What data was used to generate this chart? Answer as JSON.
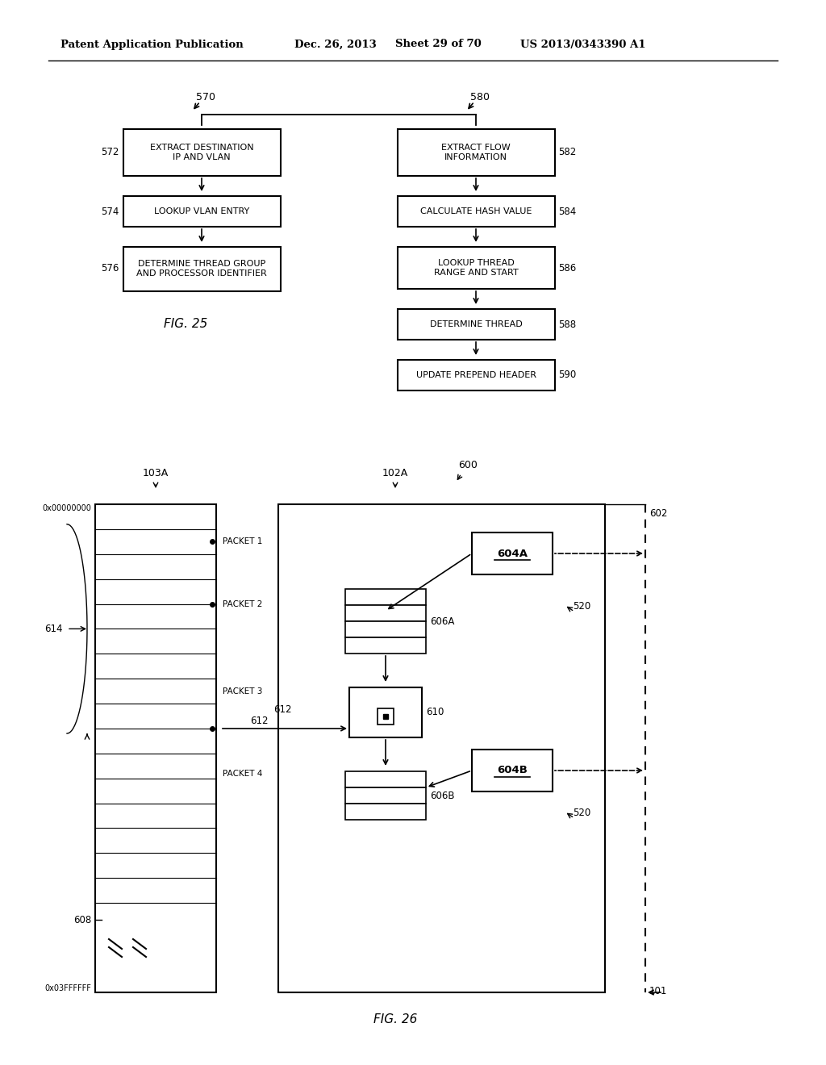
{
  "bg_color": "#ffffff",
  "header_text": "Patent Application Publication",
  "header_date": "Dec. 26, 2013",
  "header_sheet": "Sheet 29 of 70",
  "header_patent": "US 2013/0343390 A1"
}
